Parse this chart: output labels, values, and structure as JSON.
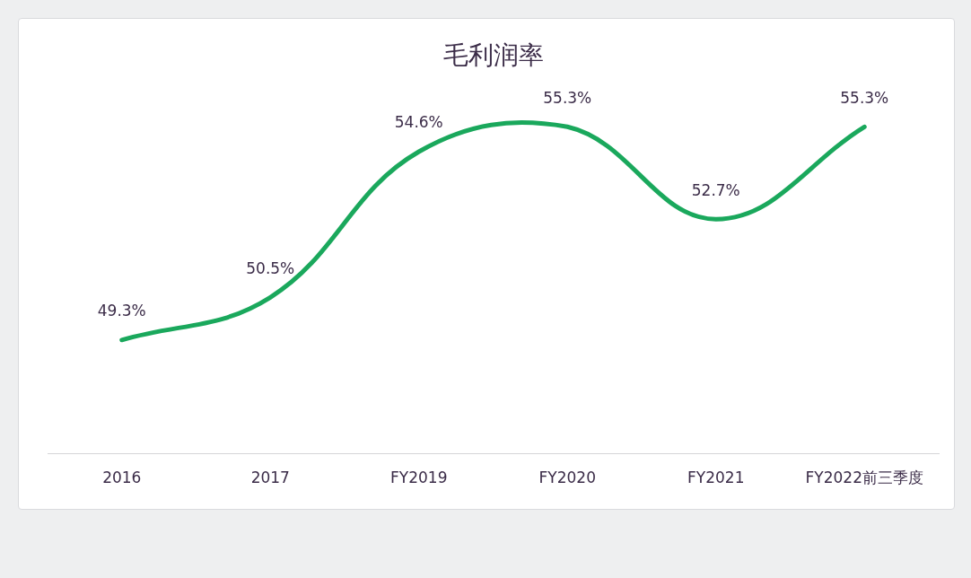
{
  "chart_data": {
    "type": "line",
    "title": "毛利润率",
    "categories": [
      "2016",
      "2017",
      "FY2019",
      "FY2020",
      "FY2021",
      "FY2022前三季度"
    ],
    "values": [
      49.3,
      50.5,
      54.6,
      55.3,
      52.7,
      55.3
    ],
    "color": "#1aa85c",
    "value_labels": [
      "49.3%",
      "50.5%",
      "54.6%",
      "55.3%",
      "52.7%",
      "55.3%"
    ],
    "marker": "none",
    "line_style": "solid",
    "legend": false
  }
}
